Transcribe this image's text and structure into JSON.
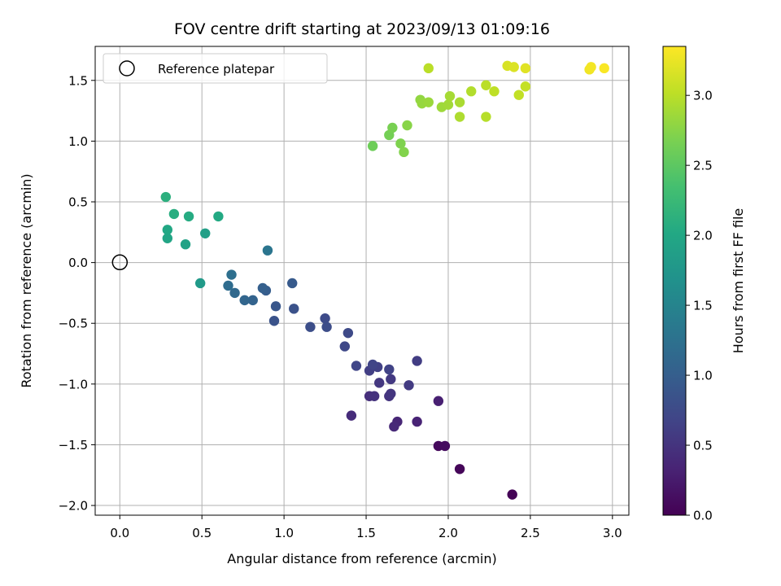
{
  "chart_data": {
    "type": "scatter",
    "title": "FOV centre drift starting at 2023/09/13 01:09:16",
    "xlabel": "Angular distance from reference (arcmin)",
    "ylabel": "Rotation from reference (arcmin)",
    "xlim": [
      -0.15,
      3.1
    ],
    "ylim": [
      -2.08,
      1.78
    ],
    "xticks": [
      0.0,
      0.5,
      1.0,
      1.5,
      2.0,
      2.5,
      3.0
    ],
    "xtick_labels": [
      "0.0",
      "0.5",
      "1.0",
      "1.5",
      "2.0",
      "2.5",
      "3.0"
    ],
    "yticks": [
      -2.0,
      -1.5,
      -1.0,
      -0.5,
      0.0,
      0.5,
      1.0,
      1.5
    ],
    "ytick_labels": [
      "−2.0",
      "−1.5",
      "−1.0",
      "−0.5",
      "0.0",
      "0.5",
      "1.0",
      "1.5"
    ],
    "grid": true,
    "colormap": "viridis",
    "colorbar": {
      "label": "Hours from first FF file",
      "range": [
        0.0,
        3.35
      ],
      "ticks": [
        0.0,
        0.5,
        1.0,
        1.5,
        2.0,
        2.5,
        3.0
      ],
      "tick_labels": [
        "0.0",
        "0.5",
        "1.0",
        "1.5",
        "2.0",
        "2.5",
        "3.0"
      ]
    },
    "legend": {
      "position": "top-left",
      "entries": [
        {
          "label": "Reference platepar",
          "marker": "open-circle",
          "x": 0.0,
          "y": 0.0
        }
      ]
    },
    "points": [
      {
        "x": 2.39,
        "y": -1.91,
        "c": 0.02
      },
      {
        "x": 2.07,
        "y": -1.7,
        "c": 0.05
      },
      {
        "x": 1.94,
        "y": -1.51,
        "c": 0.08
      },
      {
        "x": 1.98,
        "y": -1.51,
        "c": 0.11
      },
      {
        "x": 1.94,
        "y": -1.14,
        "c": 0.3
      },
      {
        "x": 1.81,
        "y": -1.31,
        "c": 0.33
      },
      {
        "x": 1.69,
        "y": -1.31,
        "c": 0.36
      },
      {
        "x": 1.67,
        "y": -1.35,
        "c": 0.39
      },
      {
        "x": 1.41,
        "y": -1.26,
        "c": 0.42
      },
      {
        "x": 1.52,
        "y": -1.1,
        "c": 0.45
      },
      {
        "x": 1.55,
        "y": -1.1,
        "c": 0.48
      },
      {
        "x": 1.64,
        "y": -1.1,
        "c": 0.5
      },
      {
        "x": 1.65,
        "y": -1.08,
        "c": 0.52
      },
      {
        "x": 1.58,
        "y": -0.99,
        "c": 0.54
      },
      {
        "x": 1.65,
        "y": -0.96,
        "c": 0.56
      },
      {
        "x": 1.76,
        "y": -1.01,
        "c": 0.58
      },
      {
        "x": 1.81,
        "y": -0.81,
        "c": 0.6
      },
      {
        "x": 1.52,
        "y": -0.89,
        "c": 0.62
      },
      {
        "x": 1.57,
        "y": -0.86,
        "c": 0.64
      },
      {
        "x": 1.64,
        "y": -0.88,
        "c": 0.66
      },
      {
        "x": 1.54,
        "y": -0.84,
        "c": 0.68
      },
      {
        "x": 1.44,
        "y": -0.85,
        "c": 0.7
      },
      {
        "x": 1.37,
        "y": -0.69,
        "c": 0.72
      },
      {
        "x": 1.39,
        "y": -0.58,
        "c": 0.74
      },
      {
        "x": 1.25,
        "y": -0.46,
        "c": 0.76
      },
      {
        "x": 1.26,
        "y": -0.53,
        "c": 0.78
      },
      {
        "x": 1.16,
        "y": -0.53,
        "c": 0.8
      },
      {
        "x": 1.06,
        "y": -0.38,
        "c": 0.84
      },
      {
        "x": 0.94,
        "y": -0.48,
        "c": 0.86
      },
      {
        "x": 0.95,
        "y": -0.36,
        "c": 0.9
      },
      {
        "x": 1.05,
        "y": -0.17,
        "c": 0.94
      },
      {
        "x": 0.89,
        "y": -0.23,
        "c": 0.98
      },
      {
        "x": 0.87,
        "y": -0.21,
        "c": 1.02
      },
      {
        "x": 0.81,
        "y": -0.31,
        "c": 1.06
      },
      {
        "x": 0.76,
        "y": -0.31,
        "c": 1.1
      },
      {
        "x": 0.7,
        "y": -0.25,
        "c": 1.14
      },
      {
        "x": 0.66,
        "y": -0.19,
        "c": 1.18
      },
      {
        "x": 0.68,
        "y": -0.1,
        "c": 1.22
      },
      {
        "x": 0.9,
        "y": 0.1,
        "c": 1.3
      },
      {
        "x": 0.49,
        "y": -0.17,
        "c": 1.8
      },
      {
        "x": 0.52,
        "y": 0.24,
        "c": 1.88
      },
      {
        "x": 0.4,
        "y": 0.15,
        "c": 1.92
      },
      {
        "x": 0.29,
        "y": 0.2,
        "c": 1.96
      },
      {
        "x": 0.29,
        "y": 0.27,
        "c": 2.0
      },
      {
        "x": 0.6,
        "y": 0.38,
        "c": 2.02
      },
      {
        "x": 0.42,
        "y": 0.38,
        "c": 2.05
      },
      {
        "x": 0.33,
        "y": 0.4,
        "c": 2.08
      },
      {
        "x": 0.28,
        "y": 0.54,
        "c": 2.11
      },
      {
        "x": 1.54,
        "y": 0.96,
        "c": 2.6
      },
      {
        "x": 1.64,
        "y": 1.05,
        "c": 2.64
      },
      {
        "x": 1.66,
        "y": 1.11,
        "c": 2.67
      },
      {
        "x": 1.71,
        "y": 0.98,
        "c": 2.7
      },
      {
        "x": 1.73,
        "y": 0.91,
        "c": 2.72
      },
      {
        "x": 1.75,
        "y": 1.13,
        "c": 2.75
      },
      {
        "x": 1.83,
        "y": 1.34,
        "c": 2.8
      },
      {
        "x": 1.84,
        "y": 1.31,
        "c": 2.82
      },
      {
        "x": 1.88,
        "y": 1.32,
        "c": 2.84
      },
      {
        "x": 1.96,
        "y": 1.28,
        "c": 2.86
      },
      {
        "x": 2.0,
        "y": 1.3,
        "c": 2.88
      },
      {
        "x": 2.01,
        "y": 1.37,
        "c": 2.9
      },
      {
        "x": 2.07,
        "y": 1.32,
        "c": 2.92
      },
      {
        "x": 2.07,
        "y": 1.2,
        "c": 2.94
      },
      {
        "x": 2.14,
        "y": 1.41,
        "c": 2.96
      },
      {
        "x": 2.23,
        "y": 1.2,
        "c": 2.98
      },
      {
        "x": 2.23,
        "y": 1.46,
        "c": 3.0
      },
      {
        "x": 2.28,
        "y": 1.41,
        "c": 3.02
      },
      {
        "x": 2.43,
        "y": 1.38,
        "c": 3.04
      },
      {
        "x": 2.47,
        "y": 1.45,
        "c": 3.05
      },
      {
        "x": 1.88,
        "y": 1.6,
        "c": 3.0
      },
      {
        "x": 2.36,
        "y": 1.62,
        "c": 3.15
      },
      {
        "x": 2.4,
        "y": 1.61,
        "c": 3.17
      },
      {
        "x": 2.47,
        "y": 1.6,
        "c": 3.2
      },
      {
        "x": 2.86,
        "y": 1.59,
        "c": 3.28
      },
      {
        "x": 2.87,
        "y": 1.61,
        "c": 3.3
      },
      {
        "x": 2.95,
        "y": 1.6,
        "c": 3.33
      }
    ]
  }
}
